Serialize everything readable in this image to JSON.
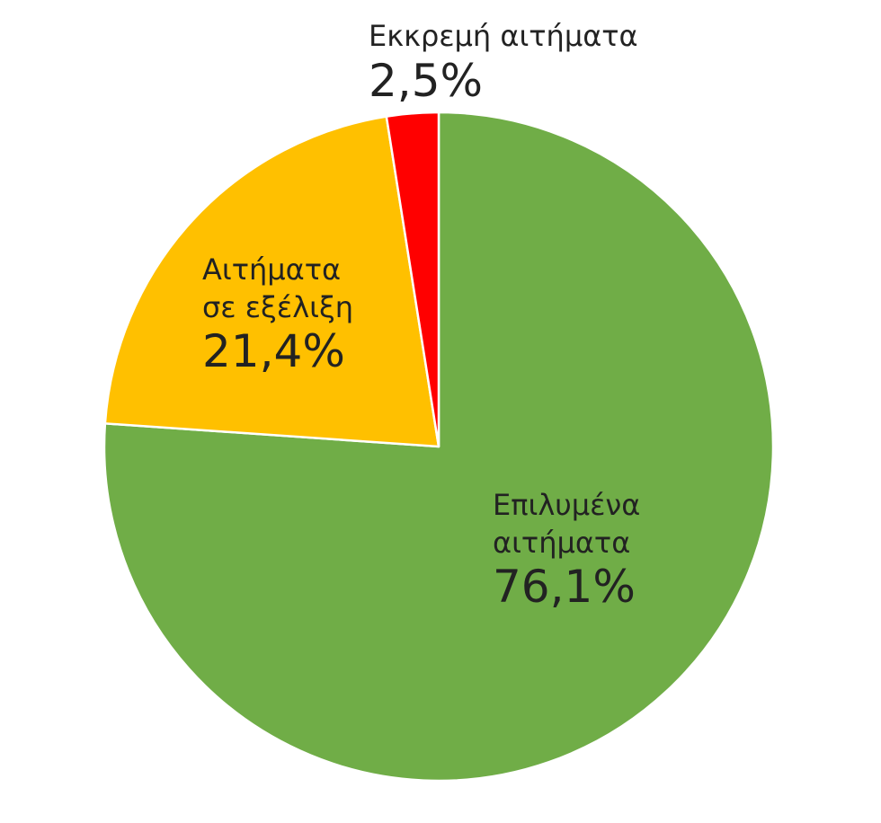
{
  "chart_data": {
    "type": "pie",
    "categories": [
      "Επιλυμένα αιτήματα",
      "Αιτήματα σε εξέλιξη",
      "Εκκρεμή αιτήματα"
    ],
    "values": [
      76.1,
      21.4,
      2.5
    ],
    "value_labels": [
      "76,1%",
      "21,4%",
      "2,5%"
    ],
    "colors": [
      "#70ad47",
      "#ffc000",
      "#ff0000"
    ]
  }
}
